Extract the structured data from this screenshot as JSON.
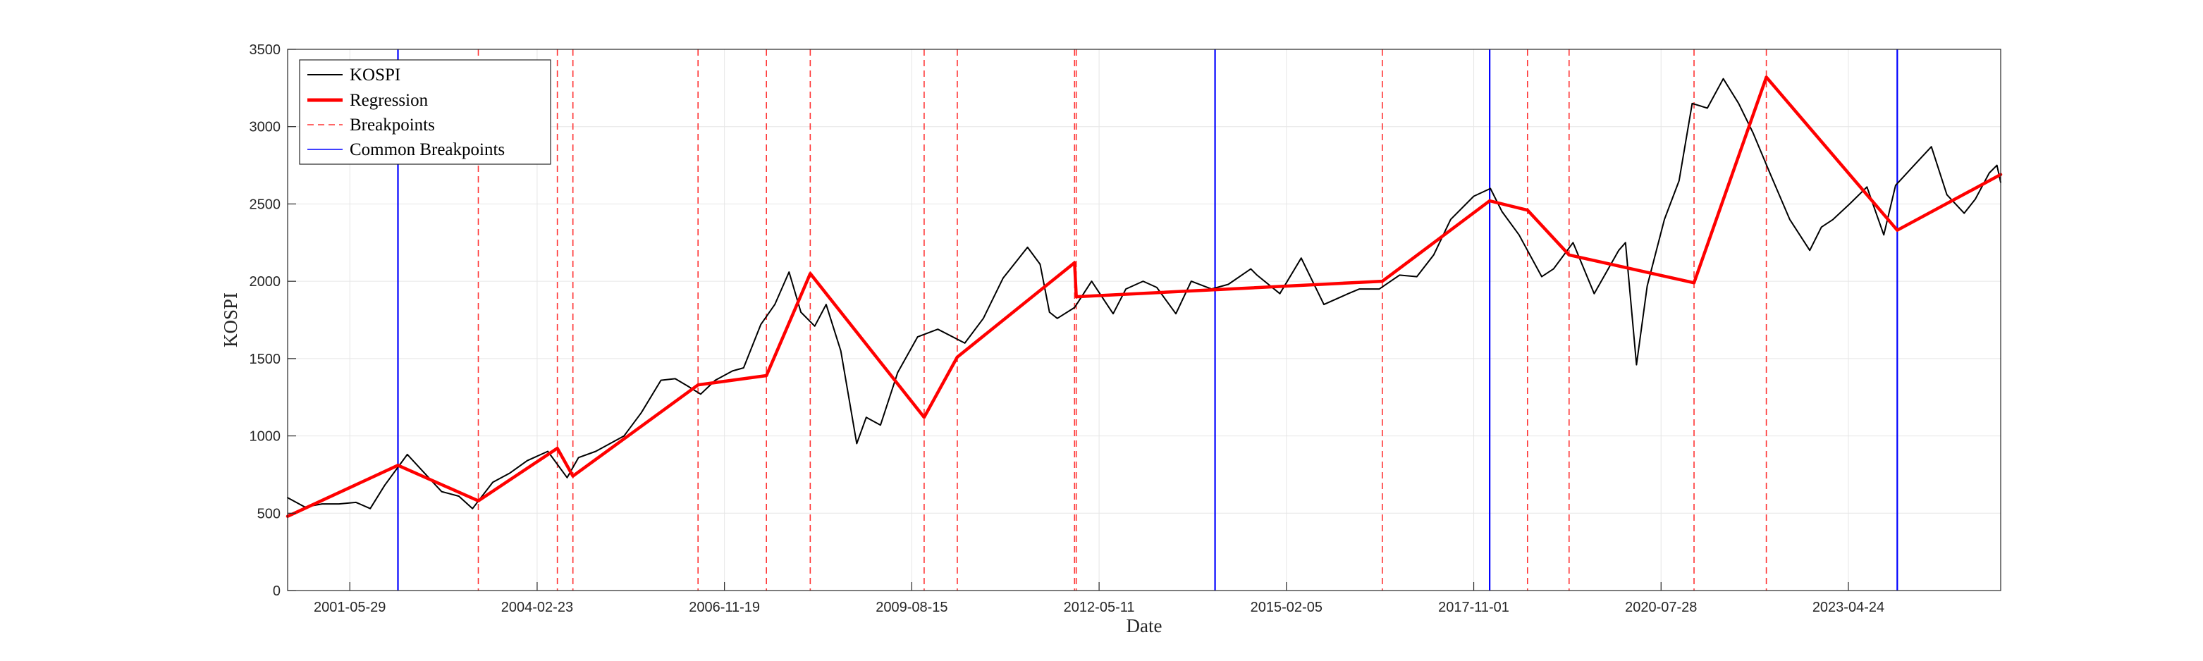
{
  "chart_data": {
    "type": "line",
    "xlabel": "Date",
    "ylabel": "KOSPI",
    "ylim": [
      0,
      3500
    ],
    "xlim": [
      "2000-07-01",
      "2025-07-15"
    ],
    "yticks": [
      0,
      500,
      1000,
      1500,
      2000,
      2500,
      3000,
      3500
    ],
    "xticks": [
      "2001-05-29",
      "2004-02-23",
      "2006-11-19",
      "2009-08-15",
      "2012-05-11",
      "2015-02-05",
      "2017-11-01",
      "2020-07-28",
      "2023-04-24"
    ],
    "grid": true,
    "legend": {
      "placement": "top-left",
      "entries": [
        "KOSPI",
        "Regression",
        "Breakpoints",
        "Common Breakpoints"
      ]
    },
    "series": [
      {
        "name": "KOSPI",
        "color": "#000000",
        "x": [
          "2000-07-01",
          "2000-10-01",
          "2001-01-01",
          "2001-04-01",
          "2001-07-01",
          "2001-09-15",
          "2001-12-01",
          "2002-04-01",
          "2002-07-01",
          "2002-10-01",
          "2003-01-01",
          "2003-03-15",
          "2003-07-01",
          "2003-10-01",
          "2004-01-01",
          "2004-04-20",
          "2004-08-01",
          "2004-10-01",
          "2005-01-01",
          "2005-06-01",
          "2005-09-01",
          "2005-12-15",
          "2006-03-01",
          "2006-05-10",
          "2006-07-15",
          "2006-10-01",
          "2007-01-01",
          "2007-03-01",
          "2007-06-01",
          "2007-08-15",
          "2007-10-30",
          "2008-01-01",
          "2008-03-15",
          "2008-05-15",
          "2008-08-01",
          "2008-10-25",
          "2008-12-15",
          "2009-03-01",
          "2009-06-01",
          "2009-09-15",
          "2010-01-01",
          "2010-05-25",
          "2010-09-01",
          "2010-12-15",
          "2011-04-25",
          "2011-07-01",
          "2011-08-20",
          "2011-10-01",
          "2012-01-01",
          "2012-04-01",
          "2012-07-25",
          "2012-10-01",
          "2013-01-01",
          "2013-03-15",
          "2013-06-25",
          "2013-09-15",
          "2014-01-01",
          "2014-04-01",
          "2014-07-30",
          "2014-09-01",
          "2015-01-01",
          "2015-04-25",
          "2015-08-24",
          "2016-01-01",
          "2016-03-01",
          "2016-06-15",
          "2016-10-01",
          "2017-01-01",
          "2017-04-01",
          "2017-07-01",
          "2017-11-01",
          "2018-01-29",
          "2018-04-01",
          "2018-07-01",
          "2018-10-30",
          "2019-01-01",
          "2019-04-15",
          "2019-08-06",
          "2019-12-15",
          "2020-01-20",
          "2020-03-19",
          "2020-05-15",
          "2020-08-15",
          "2020-11-01",
          "2021-01-10",
          "2021-04-01",
          "2021-06-25",
          "2021-09-15",
          "2021-12-01",
          "2022-03-01",
          "2022-06-15",
          "2022-09-30",
          "2022-12-01",
          "2023-02-01",
          "2023-05-01",
          "2023-08-01",
          "2023-10-30",
          "2024-01-01",
          "2024-04-01",
          "2024-07-10",
          "2024-10-01",
          "2025-01-01",
          "2025-03-01",
          "2025-05-15",
          "2025-06-25",
          "2025-07-15"
        ],
        "values": [
          600,
          540,
          560,
          560,
          570,
          530,
          680,
          880,
          760,
          640,
          610,
          530,
          700,
          760,
          840,
          900,
          730,
          860,
          900,
          1000,
          1150,
          1360,
          1370,
          1320,
          1270,
          1360,
          1420,
          1440,
          1720,
          1850,
          2060,
          1800,
          1710,
          1850,
          1550,
          950,
          1120,
          1070,
          1410,
          1640,
          1690,
          1600,
          1760,
          2020,
          2220,
          2110,
          1800,
          1760,
          1830,
          2000,
          1790,
          1950,
          2000,
          1960,
          1790,
          2000,
          1950,
          1980,
          2080,
          2040,
          1920,
          2150,
          1850,
          1920,
          1950,
          1950,
          2040,
          2030,
          2170,
          2400,
          2550,
          2600,
          2450,
          2300,
          2030,
          2080,
          2250,
          1920,
          2200,
          2250,
          1460,
          1970,
          2400,
          2650,
          3150,
          3120,
          3310,
          3150,
          2960,
          2700,
          2400,
          2200,
          2350,
          2400,
          2500,
          2610,
          2300,
          2620,
          2740,
          2870,
          2560,
          2440,
          2530,
          2700,
          2750,
          2640
        ]
      },
      {
        "name": "Regression",
        "color": "#ff0000",
        "x": [
          "2000-07-01",
          "2002-02-10",
          "2003-04-15",
          "2004-06-10",
          "2004-09-01",
          "2006-07-01",
          "2007-07-01",
          "2008-02-20",
          "2009-10-20",
          "2010-04-15",
          "2012-01-01",
          "2012-01-10",
          "2016-07-01",
          "2018-01-25",
          "2018-08-15",
          "2019-03-25",
          "2021-01-20",
          "2022-02-10",
          "2024-01-10",
          "2025-07-15"
        ],
        "values": [
          480,
          810,
          580,
          920,
          740,
          1330,
          1390,
          2050,
          1120,
          1510,
          2120,
          1900,
          2000,
          2520,
          2460,
          2170,
          1990,
          3320,
          2330,
          2690
        ]
      }
    ],
    "breakpoints": [
      "2003-04-15",
      "2004-06-10",
      "2004-09-01",
      "2006-07-01",
      "2007-07-01",
      "2008-02-20",
      "2009-10-20",
      "2010-04-15",
      "2012-01-01",
      "2012-01-10",
      "2016-07-01",
      "2018-08-15",
      "2019-03-25",
      "2021-01-20",
      "2022-02-10"
    ],
    "common_breakpoints": [
      "2002-02-10",
      "2014-01-20",
      "2018-01-25",
      "2024-01-10"
    ],
    "colors": {
      "kospi": "#000000",
      "regression": "#ff0000",
      "breakpoints": "#ff3333",
      "common_breakpoints": "#0000ff",
      "grid": "#e6e6e6",
      "axis": "#262626"
    }
  }
}
